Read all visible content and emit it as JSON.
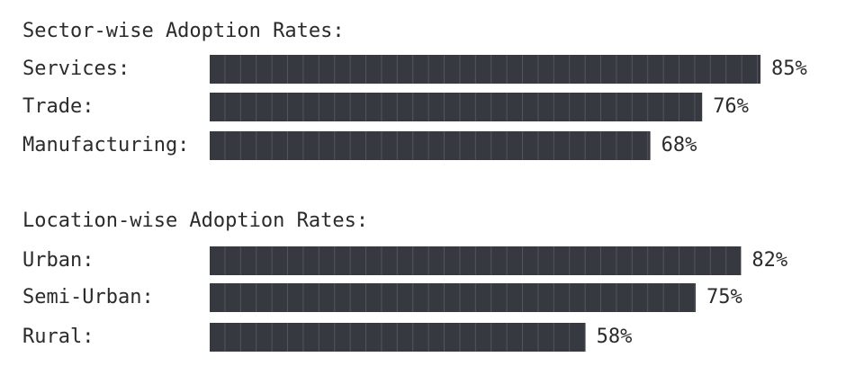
{
  "chart_data": [
    {
      "type": "bar",
      "orientation": "horizontal",
      "title": "Sector-wise Adoption Rates:",
      "categories": [
        "Services:",
        "Trade:",
        "Manufacturing:"
      ],
      "values": [
        85,
        76,
        68
      ],
      "value_labels": [
        "85%",
        "76%",
        "68%"
      ],
      "color": "#363940"
    },
    {
      "type": "bar",
      "orientation": "horizontal",
      "title": "Location-wise Adoption Rates:",
      "categories": [
        "Urban:",
        "Semi-Urban:",
        "Rural:"
      ],
      "values": [
        82,
        75,
        58
      ],
      "value_labels": [
        "82%",
        "75%",
        "58%"
      ],
      "color": "#363940"
    }
  ]
}
